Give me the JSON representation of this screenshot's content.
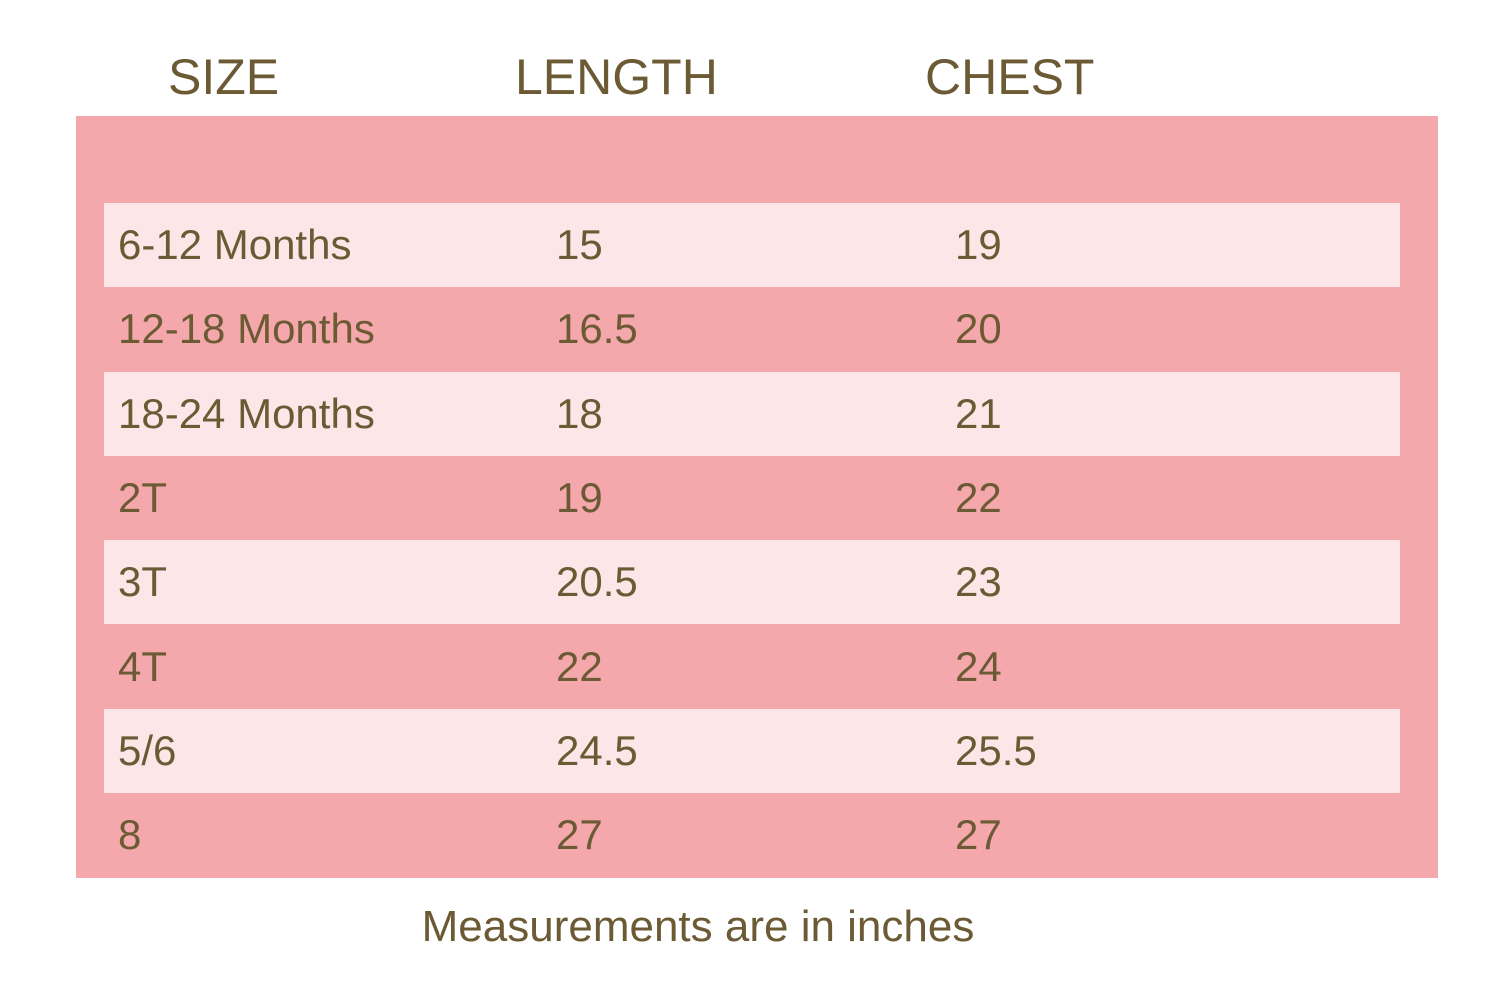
{
  "header": [
    "SIZE",
    "LENGTH",
    "CHEST"
  ],
  "rows": [
    [
      "6-12 Months",
      "15",
      "19"
    ],
    [
      "12-18 Months",
      "16.5",
      "20"
    ],
    [
      "18-24 Months",
      "18",
      "21"
    ],
    [
      "2T",
      "19",
      "22"
    ],
    [
      "3T",
      "20.5",
      "23"
    ],
    [
      "4T",
      "22",
      "24"
    ],
    [
      "5/6",
      "24.5",
      "25.5"
    ],
    [
      "8",
      "27",
      "27"
    ]
  ],
  "note": "Measurements are in inches"
}
